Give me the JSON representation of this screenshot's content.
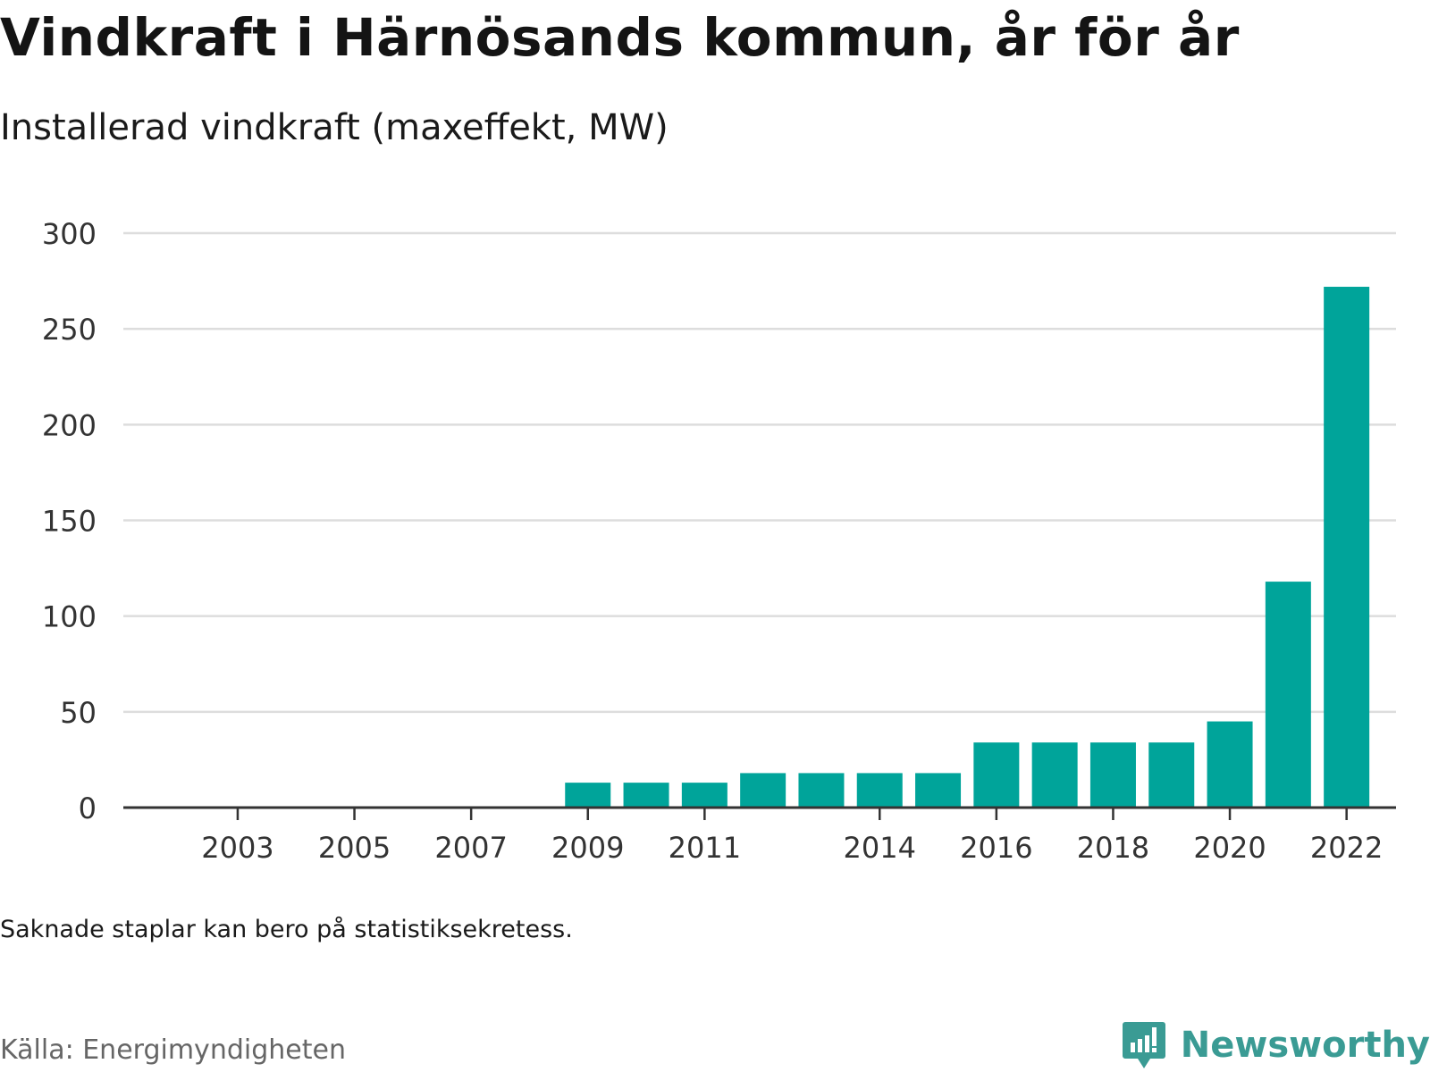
{
  "header": {
    "title": "Vindkraft i Härnösands kommun, år för år",
    "subtitle": "Installerad vindkraft (maxeffekt, MW)"
  },
  "footer": {
    "note": "Saknade staplar kan bero på statistiksekretess.",
    "source": "Källa: Energimyndigheten",
    "brand": "Newsworthy"
  },
  "colors": {
    "bar": "#00a49a",
    "grid": "#dddddd",
    "axis": "#333333",
    "brand": "#3a9b94"
  },
  "chart_data": {
    "type": "bar",
    "title": "Vindkraft i Härnösands kommun, år för år",
    "subtitle": "Installerad vindkraft (maxeffekt, MW)",
    "xlabel": "",
    "ylabel": "",
    "ylim": [
      0,
      300
    ],
    "yticks": [
      0,
      50,
      100,
      150,
      200,
      250,
      300
    ],
    "grid": true,
    "legend": "none",
    "categories": [
      "2002",
      "2003",
      "2004",
      "2005",
      "2006",
      "2007",
      "2008",
      "2009",
      "2010",
      "2011",
      "2012",
      "2013",
      "2014",
      "2015",
      "2016",
      "2017",
      "2018",
      "2019",
      "2020",
      "2021",
      "2022"
    ],
    "x_tick_labels": [
      "2003",
      "2005",
      "2007",
      "2009",
      "2011",
      "2014",
      "2016",
      "2018",
      "2020",
      "2022"
    ],
    "values": [
      null,
      null,
      null,
      null,
      null,
      null,
      null,
      13,
      13,
      13,
      18,
      18,
      18,
      18,
      34,
      34,
      34,
      34,
      45,
      118,
      272
    ]
  }
}
